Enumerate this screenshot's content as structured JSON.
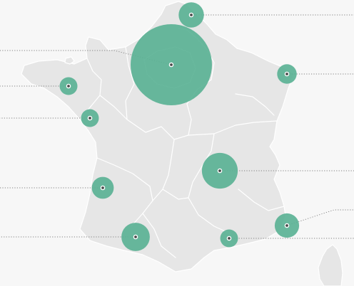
{
  "map": {
    "colors": {
      "background": "#f7f7f7",
      "land": "#e6e6e6",
      "region_border": "#ffffff",
      "bubble": "#5bb295",
      "leader": "#808080",
      "dot": "#4a4a4a"
    },
    "markers": [
      {
        "id": "paris",
        "size": 1.0
      },
      {
        "id": "lille",
        "size": 0.31
      },
      {
        "id": "strasbourg",
        "size": 0.24
      },
      {
        "id": "rennes",
        "size": 0.22
      },
      {
        "id": "nantes",
        "size": 0.22
      },
      {
        "id": "lyon",
        "size": 0.44
      },
      {
        "id": "bordeaux",
        "size": 0.27
      },
      {
        "id": "toulouse",
        "size": 0.35
      },
      {
        "id": "montpellier",
        "size": 0.22
      },
      {
        "id": "marseille",
        "size": 0.3
      }
    ]
  }
}
